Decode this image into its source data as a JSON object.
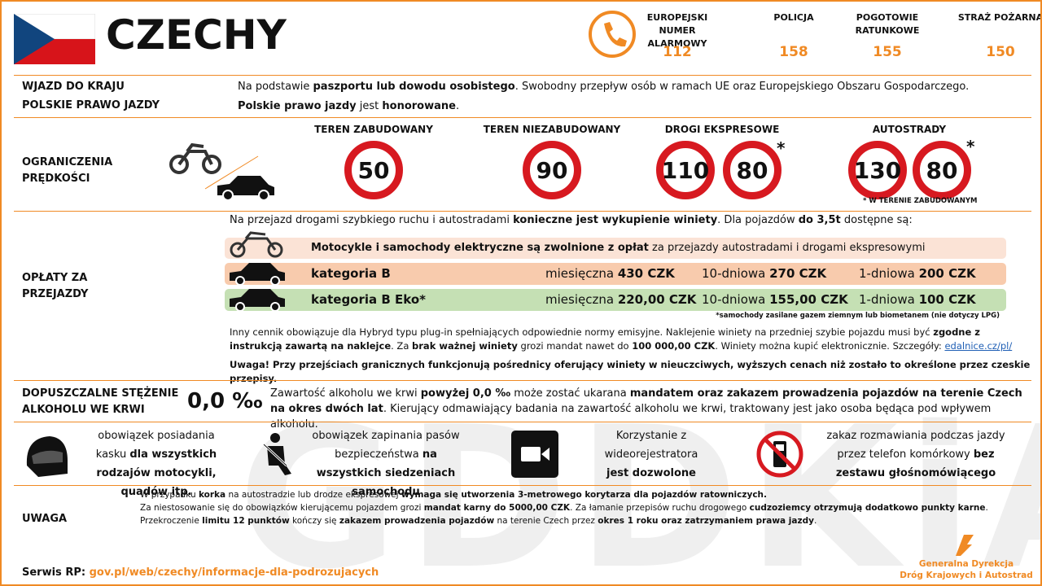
{
  "header": {
    "title": "CZECHY",
    "emergency": [
      {
        "label": "EUROPEJSKI NUMER ALARMOWY",
        "number": "112"
      },
      {
        "label": "POLICJA",
        "number": "158"
      },
      {
        "label": "POGOTOWIE RATUNKOWE",
        "number": "155"
      },
      {
        "label": "STRAŻ POŻARNA",
        "number": "150"
      }
    ]
  },
  "entry": {
    "label": "WJAZD DO KRAJU",
    "text": [
      "Na podstawie ",
      "paszportu lub dowodu osobistego",
      ". Swobodny przepływ osób w ramach UE oraz Europejskiego Obszaru Gospodarczego."
    ],
    "license_label": "POLSKIE PRAWO JAZDY",
    "license_text": [
      "Polskie prawo jazdy",
      " jest ",
      "honorowane",
      "."
    ]
  },
  "speed": {
    "label": "OGRANICZENIA PRĘDKOŚCI",
    "zones": [
      {
        "name": "TEREN ZABUDOWANY",
        "limits": [
          "50"
        ]
      },
      {
        "name": "TEREN NIEZABUDOWANY",
        "limits": [
          "90"
        ]
      },
      {
        "name": "DROGI EKSPRESOWE",
        "limits": [
          "110",
          "80"
        ],
        "mark": "*"
      },
      {
        "name": "AUTOSTRADY",
        "limits": [
          "130",
          "80"
        ],
        "mark": "*"
      }
    ],
    "note": "* W TERENIE ZABUDOWANYM"
  },
  "tolls": {
    "label": "OPŁATY ZA PRZEJAZDY",
    "intro": [
      "Na przejazd drogami szybkiego ruchu i autostradami ",
      "konieczne jest wykupienie winiety",
      ". Dla pojazdów ",
      "do 3,5t",
      " dostępne są:"
    ],
    "exempt": [
      "Motocykle i samochody elektryczne są zwolnione z opłat",
      " za przejazdy autostradami i drogami ekspresowymi"
    ],
    "rows": [
      {
        "category": "kategoria B",
        "prices": [
          [
            "miesięczna ",
            "430 CZK"
          ],
          [
            "10-dniowa ",
            "270 CZK"
          ],
          [
            "1-dniowa ",
            "200 CZK"
          ]
        ]
      },
      {
        "category": "kategoria B Eko*",
        "prices": [
          [
            "miesięczna ",
            "220,00 CZK"
          ],
          [
            "10-dniowa ",
            "155,00 CZK"
          ],
          [
            "1-dniowa ",
            "100 CZK"
          ]
        ]
      }
    ],
    "footnote": "*samochody zasilane gazem ziemnym lub biometanem (nie dotyczy LPG)",
    "info": [
      "Inny cennik obowiązuje dla Hybryd typu plug-in spełniających odpowiednie normy emisyjne. Naklejenie winiety na przedniej szybie pojazdu musi być ",
      "zgodne z instrukcją zawartą na naklejce",
      ". Za ",
      "brak ważnej winiety",
      " grozi mandat nawet do ",
      "100 000,00 CZK",
      ". Winiety można kupić elektronicznie. Szczegóły: ",
      "edalnice.cz/pl/"
    ],
    "warning": "Uwaga! Przy przejściach granicznych funkcjonują pośrednicy oferujący winiety w nieuczciwych, wyższych cenach niż zostało to określone przez czeskie przepisy."
  },
  "alcohol": {
    "label": "DOPUSZCZALNE STĘŻENIE ALKOHOLU WE KRWI",
    "value": "0,0 ‰",
    "text": [
      "Zawartość alkoholu we krwi ",
      "powyżej 0,0 ‰",
      " może zostać ukarana ",
      "mandatem oraz zakazem prowadzenia pojazdów na terenie Czech na okres dwóch lat",
      ". Kierujący odmawiający badania na zawartość alkoholu we krwi, traktowany jest jako osoba będąca pod wpływem alkoholu."
    ]
  },
  "rules": [
    [
      "obowiązek posiadania kasku ",
      "dla wszystkich rodzajów motocykli, quadów itp."
    ],
    [
      "obowiązek zapinania pasów bezpieczeństwa ",
      "na wszystkich siedzeniach samochodu"
    ],
    [
      "Korzystanie z wideorejestratora ",
      "jest dozwolone"
    ],
    [
      "zakaz rozmawiania podczas jazdy przez telefon komórkowy ",
      "bez zestawu głośnomówiącego"
    ]
  ],
  "notes": {
    "label": "UWAGA",
    "line1": [
      "W przypadku ",
      "korka",
      " na autostradzie lub drodze ekspresowej ",
      "wymaga się utworzenia 3-metrowego korytarza dla pojazdów ratowniczych."
    ],
    "line2": [
      "Za niestosowanie się do obowiązków kierującemu pojazdem grozi ",
      "mandat karny do 5000,00 CZK",
      ". Za łamanie przepisów ruchu drogowego ",
      "cudzoziemcy otrzymują dodatkowo punkty karne",
      ". Przekroczenie ",
      "limitu 12 punktów",
      " kończy się ",
      "zakazem prowadzenia pojazdów",
      " na terenie Czech przez ",
      "okres 1 roku oraz zatrzymaniem prawa jazdy",
      "."
    ]
  },
  "footer": {
    "service_label": "Serwis RP:",
    "service_link": "gov.pl/web/czechy/informacje-dla-podrozujacych",
    "logo": [
      "Generalna Dyrekcja",
      "Dróg Krajowych i Autostrad"
    ],
    "watermark": "GDDKiA"
  }
}
